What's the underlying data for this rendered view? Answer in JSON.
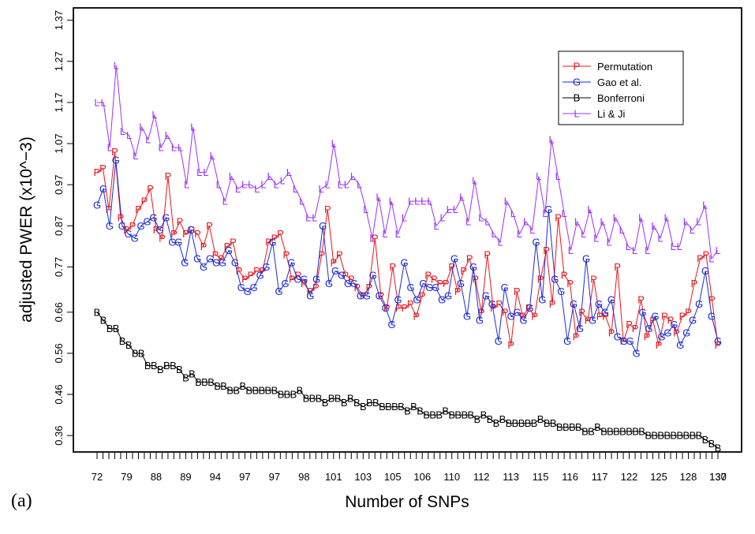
{
  "chart_data": {
    "type": "line",
    "panel_label": "(a)",
    "xlabel": "Number of SNPs",
    "ylabel": "adjusted PWER (x10^−3)",
    "ylim": [
      0.32,
      1.4
    ],
    "yticks": [
      "0.36",
      "0.46",
      "0.56",
      "0.66",
      "0.77",
      "0.87",
      "0.97",
      "1.07",
      "1.17",
      "1.27",
      "1.37"
    ],
    "xtick_labels": [
      "72",
      "79",
      "88",
      "89",
      "94",
      "97",
      "97",
      "98",
      "101",
      "103",
      "105",
      "106",
      "110",
      "112",
      "113",
      "115",
      "116",
      "117",
      "122",
      "125",
      "128",
      "130",
      "137"
    ],
    "legend": {
      "placement": "top-right",
      "bordered": true
    },
    "series": [
      {
        "name": "Permutation",
        "marker": "P",
        "color": "#e8141a",
        "values": [
          1.0,
          1.01,
          0.91,
          1.05,
          0.89,
          0.86,
          0.87,
          0.91,
          0.93,
          0.96,
          0.86,
          0.84,
          0.99,
          0.85,
          0.88,
          0.85,
          0.86,
          0.85,
          0.82,
          0.87,
          0.8,
          0.79,
          0.82,
          0.83,
          0.76,
          0.74,
          0.75,
          0.76,
          0.76,
          0.83,
          0.84,
          0.85,
          0.8,
          0.74,
          0.75,
          0.73,
          0.71,
          0.72,
          0.8,
          0.91,
          0.78,
          0.8,
          0.75,
          0.74,
          0.72,
          0.7,
          0.72,
          0.84,
          0.7,
          0.67,
          0.77,
          0.67,
          0.67,
          0.68,
          0.65,
          0.7,
          0.75,
          0.74,
          0.73,
          0.73,
          0.77,
          0.71,
          0.76,
          0.79,
          0.74,
          0.66,
          0.8,
          0.67,
          0.68,
          0.66,
          0.58,
          0.71,
          0.65,
          0.67,
          0.65,
          0.74,
          0.81,
          0.68,
          0.89,
          0.75,
          0.73,
          0.6,
          0.66,
          0.64,
          0.74,
          0.65,
          0.65,
          0.61,
          0.77,
          0.59,
          0.63,
          0.62,
          0.69,
          0.6,
          0.64,
          0.58,
          0.65,
          0.64,
          0.61,
          0.65,
          0.66,
          0.73,
          0.79,
          0.8,
          0.69,
          0.58
        ]
      },
      {
        "name": "Gao et al.",
        "marker": "G",
        "color": "#1a2bd6",
        "values": [
          0.92,
          0.96,
          0.87,
          1.03,
          0.87,
          0.85,
          0.84,
          0.87,
          0.88,
          0.89,
          0.86,
          0.89,
          0.83,
          0.83,
          0.78,
          0.86,
          0.79,
          0.77,
          0.79,
          0.78,
          0.78,
          0.81,
          0.78,
          0.72,
          0.71,
          0.72,
          0.75,
          0.77,
          0.83,
          0.71,
          0.73,
          0.78,
          0.74,
          0.74,
          0.7,
          0.74,
          0.87,
          0.73,
          0.76,
          0.75,
          0.73,
          0.73,
          0.7,
          0.7,
          0.75,
          0.7,
          0.67,
          0.63,
          0.69,
          0.78,
          0.72,
          0.69,
          0.73,
          0.72,
          0.72,
          0.69,
          0.7,
          0.79,
          0.73,
          0.65,
          0.77,
          0.64,
          0.7,
          0.68,
          0.59,
          0.72,
          0.65,
          0.66,
          0.64,
          0.67,
          0.83,
          0.69,
          0.91,
          0.74,
          0.71,
          0.59,
          0.68,
          0.62,
          0.79,
          0.64,
          0.68,
          0.66,
          0.69,
          0.6,
          0.59,
          0.59,
          0.56,
          0.66,
          0.62,
          0.65,
          0.6,
          0.61,
          0.63,
          0.58,
          0.61,
          0.64,
          0.68,
          0.76,
          0.65,
          0.59
        ]
      },
      {
        "name": "Bonferroni",
        "marker": "B",
        "color": "#000000",
        "values": [
          0.66,
          0.64,
          0.62,
          0.62,
          0.59,
          0.58,
          0.56,
          0.56,
          0.53,
          0.53,
          0.52,
          0.53,
          0.53,
          0.52,
          0.5,
          0.51,
          0.49,
          0.49,
          0.49,
          0.48,
          0.48,
          0.47,
          0.47,
          0.48,
          0.47,
          0.47,
          0.47,
          0.47,
          0.47,
          0.46,
          0.46,
          0.46,
          0.47,
          0.45,
          0.45,
          0.45,
          0.44,
          0.45,
          0.45,
          0.44,
          0.45,
          0.44,
          0.43,
          0.44,
          0.44,
          0.43,
          0.43,
          0.43,
          0.43,
          0.42,
          0.43,
          0.42,
          0.41,
          0.41,
          0.41,
          0.42,
          0.41,
          0.41,
          0.41,
          0.41,
          0.4,
          0.41,
          0.4,
          0.39,
          0.4,
          0.39,
          0.39,
          0.39,
          0.39,
          0.39,
          0.4,
          0.39,
          0.39,
          0.38,
          0.38,
          0.38,
          0.38,
          0.37,
          0.37,
          0.38,
          0.37,
          0.37,
          0.37,
          0.37,
          0.37,
          0.37,
          0.37,
          0.36,
          0.36,
          0.36,
          0.36,
          0.36,
          0.36,
          0.36,
          0.36,
          0.36,
          0.35,
          0.34,
          0.33
        ]
      },
      {
        "name": "Li & Ji",
        "marker": "L",
        "color": "#9b30ff",
        "values": [
          1.17,
          1.17,
          1.06,
          1.26,
          1.1,
          1.09,
          1.04,
          1.11,
          1.08,
          1.14,
          1.06,
          1.09,
          1.06,
          1.06,
          0.97,
          1.11,
          1.0,
          1.0,
          1.04,
          0.97,
          0.93,
          0.99,
          0.96,
          0.97,
          0.97,
          0.96,
          0.97,
          0.99,
          0.97,
          0.98,
          1.0,
          0.96,
          0.93,
          0.89,
          0.89,
          0.96,
          0.97,
          1.07,
          0.97,
          0.97,
          0.99,
          0.97,
          0.91,
          0.84,
          0.94,
          0.85,
          0.93,
          0.85,
          0.89,
          0.93,
          0.93,
          0.93,
          0.93,
          0.87,
          0.89,
          0.91,
          0.91,
          0.94,
          0.88,
          0.98,
          0.89,
          0.88,
          0.85,
          0.83,
          0.93,
          0.9,
          0.85,
          0.88,
          0.86,
          0.99,
          0.9,
          1.08,
          0.99,
          0.9,
          0.81,
          0.88,
          0.85,
          0.91,
          0.84,
          0.88,
          0.83,
          0.89,
          0.86,
          0.82,
          0.81,
          0.89,
          0.81,
          0.87,
          0.84,
          0.89,
          0.82,
          0.82,
          0.88,
          0.86,
          0.88,
          0.92,
          0.79,
          0.81
        ]
      }
    ]
  }
}
